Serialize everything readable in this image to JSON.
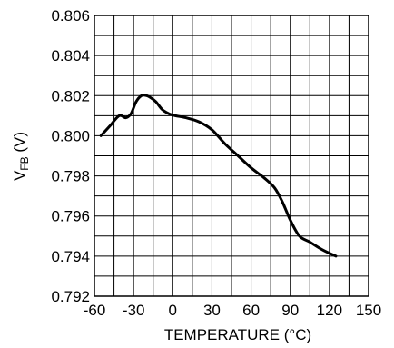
{
  "chart_data": {
    "type": "line",
    "title": "",
    "xlabel": "TEMPERATURE (°C)",
    "ylabel_main": "V",
    "ylabel_sub": "FB",
    "ylabel_unit": " (V)",
    "xlim": [
      -60,
      150
    ],
    "ylim": [
      0.792,
      0.806
    ],
    "x_ticks": [
      "-60",
      "-30",
      "0",
      "30",
      "60",
      "90",
      "120",
      "150"
    ],
    "y_ticks": [
      "0.806",
      "0.804",
      "0.802",
      "0.800",
      "0.798",
      "0.796",
      "0.794",
      "0.792"
    ],
    "grid": true,
    "series": [
      {
        "x": [
          -55,
          -48,
          -41,
          -36,
          -32,
          -28,
          -24,
          -20,
          -17,
          -13,
          -8,
          -3,
          2,
          10,
          20,
          30,
          40,
          50,
          60,
          70,
          78,
          84,
          90,
          97,
          105,
          115,
          125
        ],
        "y": [
          0.8,
          0.8005,
          0.801,
          0.8009,
          0.8011,
          0.8017,
          0.802,
          0.802,
          0.8019,
          0.8017,
          0.8013,
          0.8011,
          0.801,
          0.8009,
          0.8007,
          0.8003,
          0.7996,
          0.799,
          0.7984,
          0.7979,
          0.7974,
          0.7967,
          0.7958,
          0.795,
          0.7947,
          0.7943,
          0.794
        ]
      }
    ]
  }
}
